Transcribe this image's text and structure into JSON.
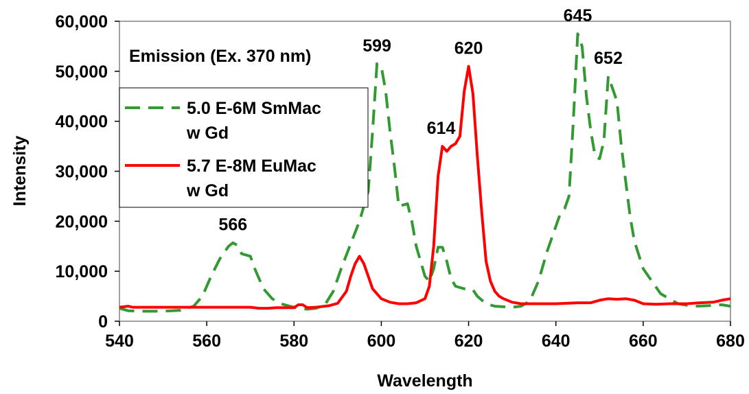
{
  "chart_data": {
    "type": "line",
    "title": "Emission (Ex. 370 nm)",
    "xlabel": "Wavelength",
    "ylabel": "Intensity",
    "xlim": [
      540,
      680
    ],
    "ylim": [
      0,
      60000
    ],
    "x_ticks": [
      540,
      560,
      580,
      600,
      620,
      640,
      660,
      680
    ],
    "x_tick_labels": [
      "540",
      "560",
      "580",
      "600",
      "620",
      "640",
      "660",
      "680"
    ],
    "y_ticks": [
      0,
      10000,
      20000,
      30000,
      40000,
      50000,
      60000
    ],
    "y_tick_labels": [
      "0",
      "10,000",
      "20,000",
      "30,000",
      "40,000",
      "50,000",
      "60,000"
    ],
    "grid": false,
    "legend_position": "left",
    "series": [
      {
        "name_lines": [
          "5.0 E-6M SmMac",
          "w Gd"
        ],
        "color": "#339933",
        "dash": "dashed",
        "points": [
          [
            540,
            2600
          ],
          [
            542,
            2100
          ],
          [
            545,
            2000
          ],
          [
            550,
            2000
          ],
          [
            554,
            2200
          ],
          [
            557,
            3000
          ],
          [
            559,
            5000
          ],
          [
            561,
            9000
          ],
          [
            563,
            12500
          ],
          [
            565,
            15000
          ],
          [
            566,
            15700
          ],
          [
            567,
            15200
          ],
          [
            568,
            13500
          ],
          [
            570,
            13000
          ],
          [
            571,
            10500
          ],
          [
            573,
            6500
          ],
          [
            575,
            4500
          ],
          [
            577,
            3500
          ],
          [
            579,
            3000
          ],
          [
            581,
            2600
          ],
          [
            583,
            2400
          ],
          [
            585,
            2600
          ],
          [
            587,
            3200
          ],
          [
            589,
            6000
          ],
          [
            591,
            11000
          ],
          [
            593,
            15500
          ],
          [
            595,
            20000
          ],
          [
            597,
            26000
          ],
          [
            598,
            38000
          ],
          [
            599,
            51500
          ],
          [
            600,
            51000
          ],
          [
            601,
            46000
          ],
          [
            602,
            38000
          ],
          [
            603,
            31000
          ],
          [
            604,
            23000
          ],
          [
            606,
            23500
          ],
          [
            607,
            20000
          ],
          [
            608,
            15000
          ],
          [
            609,
            12000
          ],
          [
            610,
            9000
          ],
          [
            611,
            8000
          ],
          [
            612,
            10500
          ],
          [
            613,
            14800
          ],
          [
            614,
            14800
          ],
          [
            615,
            12000
          ],
          [
            616,
            8500
          ],
          [
            617,
            7000
          ],
          [
            619,
            6500
          ],
          [
            620,
            6500
          ],
          [
            621,
            6300
          ],
          [
            622,
            5000
          ],
          [
            624,
            3500
          ],
          [
            626,
            3000
          ],
          [
            628,
            2900
          ],
          [
            630,
            2800
          ],
          [
            632,
            3000
          ],
          [
            634,
            4000
          ],
          [
            636,
            8000
          ],
          [
            638,
            14000
          ],
          [
            640,
            19000
          ],
          [
            641,
            21500
          ],
          [
            642,
            22500
          ],
          [
            643,
            25000
          ],
          [
            644,
            40000
          ],
          [
            645,
            57500
          ],
          [
            646,
            55000
          ],
          [
            647,
            45000
          ],
          [
            648,
            38000
          ],
          [
            649,
            33000
          ],
          [
            650,
            32500
          ],
          [
            651,
            36000
          ],
          [
            652,
            49000
          ],
          [
            653,
            46500
          ],
          [
            654,
            44000
          ],
          [
            655,
            35000
          ],
          [
            656,
            28000
          ],
          [
            657,
            21000
          ],
          [
            658,
            16000
          ],
          [
            660,
            10500
          ],
          [
            662,
            8000
          ],
          [
            664,
            5500
          ],
          [
            666,
            4500
          ],
          [
            668,
            3500
          ],
          [
            670,
            3200
          ],
          [
            672,
            3000
          ],
          [
            675,
            3100
          ],
          [
            678,
            3300
          ],
          [
            680,
            3000
          ]
        ]
      },
      {
        "name_lines": [
          "5.7 E-8M EuMac",
          "w Gd"
        ],
        "color": "#ff0000",
        "dash": "solid",
        "points": [
          [
            540,
            2800
          ],
          [
            542,
            3000
          ],
          [
            543,
            2800
          ],
          [
            545,
            2800
          ],
          [
            550,
            2800
          ],
          [
            560,
            2800
          ],
          [
            565,
            2800
          ],
          [
            570,
            2800
          ],
          [
            572,
            2600
          ],
          [
            574,
            2600
          ],
          [
            576,
            2700
          ],
          [
            578,
            2700
          ],
          [
            580,
            2700
          ],
          [
            581,
            3300
          ],
          [
            582,
            3300
          ],
          [
            583,
            2700
          ],
          [
            585,
            2800
          ],
          [
            588,
            3100
          ],
          [
            590,
            3600
          ],
          [
            592,
            6000
          ],
          [
            593,
            9000
          ],
          [
            594,
            11500
          ],
          [
            595,
            13000
          ],
          [
            596,
            11500
          ],
          [
            597,
            9000
          ],
          [
            598,
            6500
          ],
          [
            600,
            4500
          ],
          [
            602,
            3800
          ],
          [
            604,
            3500
          ],
          [
            606,
            3500
          ],
          [
            608,
            3700
          ],
          [
            610,
            4500
          ],
          [
            611,
            7000
          ],
          [
            612,
            15000
          ],
          [
            613,
            29000
          ],
          [
            614,
            35000
          ],
          [
            615,
            34000
          ],
          [
            616,
            35000
          ],
          [
            617,
            35500
          ],
          [
            618,
            37000
          ],
          [
            619,
            46000
          ],
          [
            620,
            51000
          ],
          [
            621,
            45500
          ],
          [
            622,
            33000
          ],
          [
            623,
            22000
          ],
          [
            624,
            12000
          ],
          [
            625,
            8000
          ],
          [
            626,
            6000
          ],
          [
            627,
            5000
          ],
          [
            628,
            4500
          ],
          [
            630,
            3800
          ],
          [
            632,
            3500
          ],
          [
            634,
            3500
          ],
          [
            636,
            3500
          ],
          [
            640,
            3500
          ],
          [
            645,
            3700
          ],
          [
            648,
            3700
          ],
          [
            650,
            4200
          ],
          [
            652,
            4500
          ],
          [
            654,
            4400
          ],
          [
            656,
            4500
          ],
          [
            658,
            4200
          ],
          [
            660,
            3500
          ],
          [
            663,
            3400
          ],
          [
            666,
            3500
          ],
          [
            670,
            3500
          ],
          [
            673,
            3700
          ],
          [
            676,
            3800
          ],
          [
            678,
            4200
          ],
          [
            680,
            4500
          ]
        ]
      }
    ],
    "annotations": [
      {
        "text": "566",
        "x": 566,
        "y": 15700
      },
      {
        "text": "599",
        "x": 599,
        "y": 51500
      },
      {
        "text": "614",
        "x": 613.7,
        "y": 35000
      },
      {
        "text": "620",
        "x": 620,
        "y": 51000
      },
      {
        "text": "645",
        "x": 645,
        "y": 57500
      },
      {
        "text": "652",
        "x": 652,
        "y": 49000
      }
    ]
  }
}
